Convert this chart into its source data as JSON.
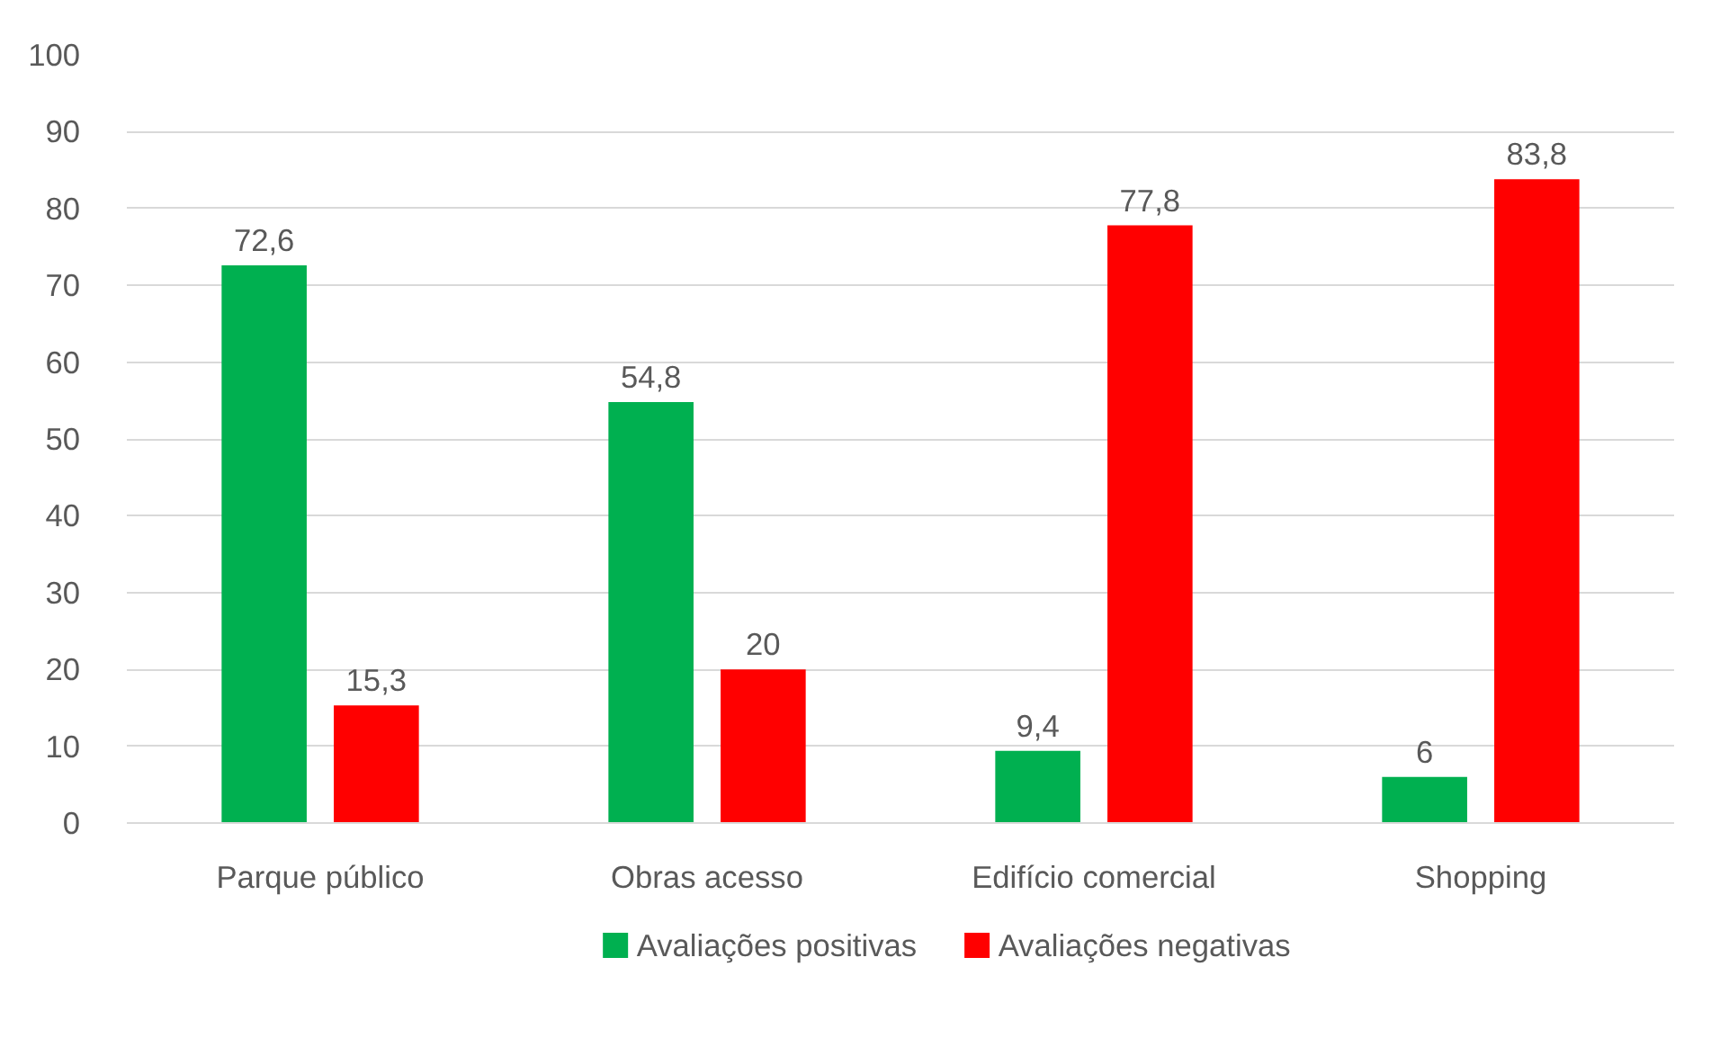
{
  "chart_data": {
    "type": "bar",
    "categories": [
      "Parque público",
      "Obras acesso",
      "Edifício comercial",
      "Shopping"
    ],
    "series": [
      {
        "name": "Avaliações positivas",
        "color": "#00b050",
        "values": [
          72.6,
          54.8,
          9.4,
          6
        ],
        "value_labels": [
          "72,6",
          "54,8",
          "9,4",
          "6"
        ]
      },
      {
        "name": "Avaliações negativas",
        "color": "#ff0000",
        "values": [
          15.3,
          20,
          77.8,
          83.8
        ],
        "value_labels": [
          "15,3",
          "20",
          "77,8",
          "83,8"
        ]
      }
    ],
    "ylim": [
      0,
      100
    ],
    "yticks": [
      0,
      10,
      20,
      30,
      40,
      50,
      60,
      70,
      80,
      90,
      100
    ],
    "grid": "y",
    "legend": "bottom"
  }
}
